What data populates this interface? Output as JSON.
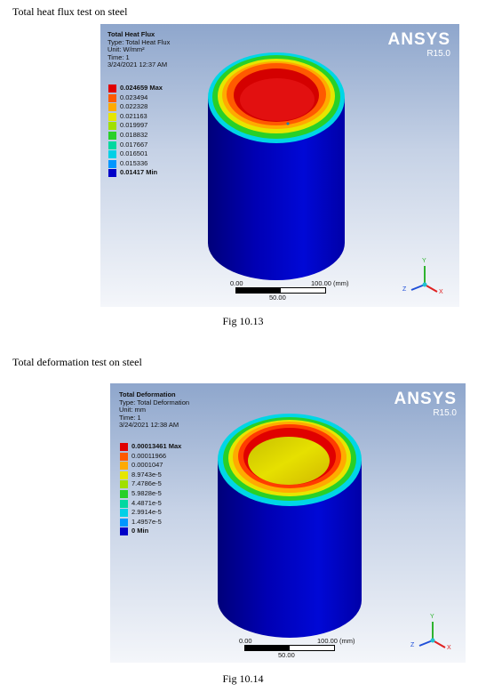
{
  "doc": {
    "caption1": "Total heat flux test on steel",
    "fig1": "Fig 10.13",
    "caption2": "Total deformation test on steel",
    "fig2": "Fig 10.14"
  },
  "panel1": {
    "title": "Total Heat Flux",
    "type": "Type: Total Heat Flux",
    "unit": "Unit: W/mm²",
    "time": "Time: 1",
    "date": "3/24/2021 12:37 AM",
    "brand": "ANSYS",
    "version": "R15.0",
    "legend": [
      {
        "label": "0.024659 Max",
        "color": "#e00000",
        "bold": true
      },
      {
        "label": "0.023494",
        "color": "#ff5a00",
        "bold": false
      },
      {
        "label": "0.022328",
        "color": "#ffaa00",
        "bold": false
      },
      {
        "label": "0.021163",
        "color": "#e6e600",
        "bold": false
      },
      {
        "label": "0.019997",
        "color": "#a0e000",
        "bold": false
      },
      {
        "label": "0.018832",
        "color": "#28d028",
        "bold": false
      },
      {
        "label": "0.017667",
        "color": "#00d8a0",
        "bold": false
      },
      {
        "label": "0.016501",
        "color": "#00d0e6",
        "bold": false
      },
      {
        "label": "0.015336",
        "color": "#0096ff",
        "bold": false
      },
      {
        "label": "0.01417 Min",
        "color": "#0000c8",
        "bold": true
      }
    ],
    "scale": {
      "start": "0.00",
      "end": "100.00 (mm)",
      "mid": "50.00"
    },
    "axes": {
      "x": "X",
      "y": "Y",
      "z": "Z"
    }
  },
  "panel2": {
    "title": "Total Deformation",
    "type": "Type: Total Deformation",
    "unit": "Unit: mm",
    "time": "Time: 1",
    "date": "3/24/2021 12:38 AM",
    "brand": "ANSYS",
    "version": "R15.0",
    "legend": [
      {
        "label": "0.00013461 Max",
        "color": "#e00000",
        "bold": true
      },
      {
        "label": "0.00011966",
        "color": "#ff5a00",
        "bold": false
      },
      {
        "label": "0.0001047",
        "color": "#ffaa00",
        "bold": false
      },
      {
        "label": "8.9743e-5",
        "color": "#e6e600",
        "bold": false
      },
      {
        "label": "7.4786e-5",
        "color": "#a0e000",
        "bold": false
      },
      {
        "label": "5.9828e-5",
        "color": "#28d028",
        "bold": false
      },
      {
        "label": "4.4871e-5",
        "color": "#00d8a0",
        "bold": false
      },
      {
        "label": "2.9914e-5",
        "color": "#00d0e6",
        "bold": false
      },
      {
        "label": "1.4957e-5",
        "color": "#0096ff",
        "bold": false
      },
      {
        "label": "0 Min",
        "color": "#0000c8",
        "bold": true
      }
    ],
    "scale": {
      "start": "0.00",
      "end": "100.00 (mm)",
      "mid": "50.00"
    },
    "axes": {
      "x": "X",
      "y": "Y",
      "z": "Z"
    }
  }
}
